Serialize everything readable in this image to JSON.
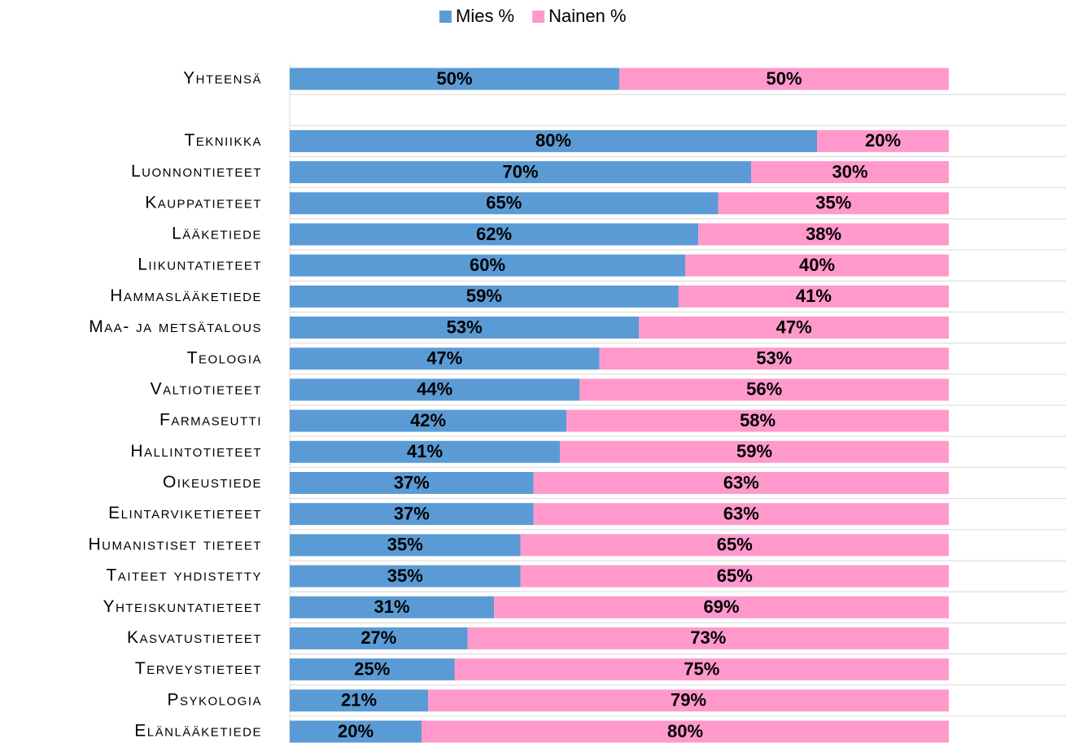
{
  "chart_data": {
    "type": "stacked-bar-horizontal",
    "categories": [
      "Yhteensä",
      null,
      "Tekniikka",
      "Luonnontieteet",
      "Kauppatieteet",
      "Lääketiede",
      "Liikuntatieteet",
      "Hammaslääketiede",
      "Maa- ja metsätalous",
      "Teologia",
      "Valtiotieteet",
      "Farmaseutti",
      "Hallintotieteet",
      "Oikeustiede",
      "Elintarviketieteet",
      "Humanistiset tieteet",
      "Taiteet yhdistetty",
      "Yhteiskuntatieteet",
      "Kasvatustieteet",
      "Terveystieteet",
      "Psykologia",
      "Elänlääketiede"
    ],
    "series": [
      {
        "name": "Mies %",
        "color": "#5b9bd5",
        "values": [
          50,
          null,
          80,
          70,
          65,
          62,
          60,
          59,
          53,
          47,
          44,
          42,
          41,
          37,
          37,
          35,
          35,
          31,
          27,
          25,
          21,
          20
        ],
        "value_labels": [
          "50%",
          null,
          "80%",
          "70%",
          "65%",
          "62%",
          "60%",
          "59%",
          "53%",
          "47%",
          "44%",
          "42%",
          "41%",
          "37%",
          "37%",
          "35%",
          "35%",
          "31%",
          "27%",
          "25%",
          "21%",
          "20%"
        ]
      },
      {
        "name": "Nainen %",
        "color": "#ff99cc",
        "values": [
          50,
          null,
          20,
          30,
          35,
          38,
          40,
          41,
          47,
          53,
          56,
          58,
          59,
          63,
          63,
          65,
          65,
          69,
          73,
          75,
          79,
          80
        ],
        "value_labels": [
          "50%",
          null,
          "20%",
          "30%",
          "35%",
          "38%",
          "40%",
          "41%",
          "47%",
          "53%",
          "56%",
          "58%",
          "59%",
          "63%",
          "63%",
          "65%",
          "65%",
          "69%",
          "73%",
          "75%",
          "79%",
          "80%"
        ]
      }
    ],
    "xlim": [
      0,
      100
    ],
    "legend": "top"
  }
}
